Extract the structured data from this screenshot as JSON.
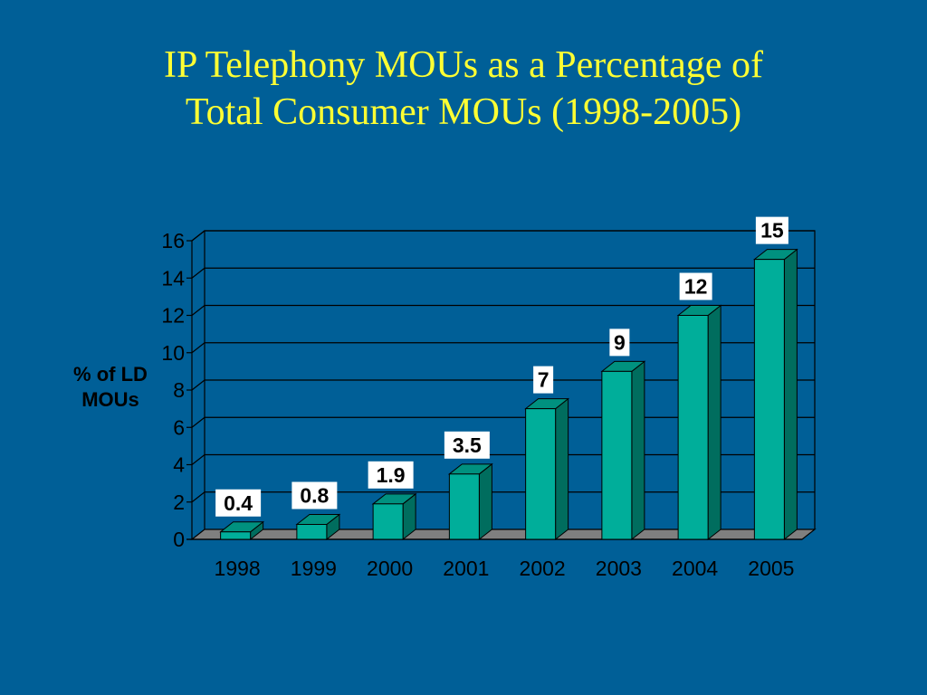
{
  "title_line1": "IP Telephony MOUs as a Percentage of",
  "title_line2": "Total Consumer MOUs (1998-2005)",
  "colors": {
    "background": "#005f97",
    "title": "#ffff33",
    "bar_front": "#00ae9a",
    "bar_side": "#006d5e",
    "bar_top": "#00917f",
    "floor": "#7f7f7f",
    "label_box": "#ffffff"
  },
  "chart_data": {
    "type": "bar",
    "title": "IP Telephony MOUs as a Percentage of Total Consumer MOUs (1998-2005)",
    "ylabel_line1": "% of LD",
    "ylabel_line2": "MOUs",
    "xlabel": "",
    "categories": [
      "1998",
      "1999",
      "2000",
      "2001",
      "2002",
      "2003",
      "2004",
      "2005"
    ],
    "values": [
      0.4,
      0.8,
      1.9,
      3.5,
      7,
      9,
      12,
      15
    ],
    "value_labels": [
      "0.4",
      "0.8",
      "1.9",
      "3.5",
      "7",
      "9",
      "12",
      "15"
    ],
    "yticks": [
      0,
      2,
      4,
      6,
      8,
      10,
      12,
      14,
      16
    ],
    "ylim": [
      0,
      16
    ],
    "grid": true,
    "style": "3d-columns",
    "legend": "none"
  }
}
